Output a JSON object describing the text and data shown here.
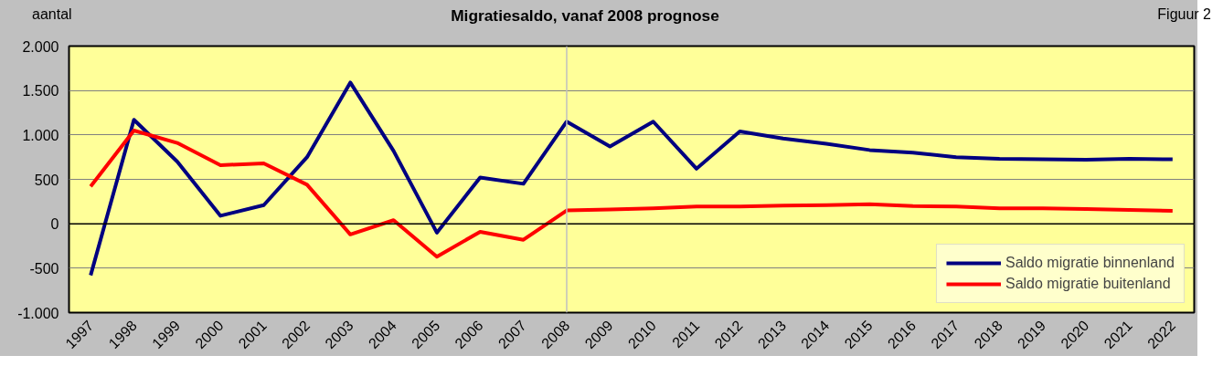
{
  "chart_data": {
    "type": "line",
    "title": "Migratiesaldo, vanaf 2008 prognose",
    "ylabel": "aantal",
    "annotations": [
      "Figuur 2"
    ],
    "categories": [
      "1997",
      "1998",
      "1999",
      "2000",
      "2001",
      "2002",
      "2003",
      "2004",
      "2005",
      "2006",
      "2007",
      "2008",
      "2009",
      "2010",
      "2011",
      "2012",
      "2013",
      "2014",
      "2015",
      "2016",
      "2017",
      "2018",
      "2019",
      "2020",
      "2021",
      "2022"
    ],
    "series": [
      {
        "name": "Saldo migratie binnenland",
        "color": "#000080",
        "values": [
          -580,
          1170,
          700,
          90,
          210,
          750,
          1590,
          820,
          -100,
          520,
          450,
          1150,
          870,
          1150,
          620,
          1040,
          960,
          900,
          830,
          800,
          750,
          730,
          725,
          720,
          730,
          725
        ]
      },
      {
        "name": "Saldo migratie buitenland",
        "color": "#ff0000",
        "values": [
          420,
          1050,
          910,
          660,
          680,
          440,
          -120,
          40,
          -370,
          -90,
          -180,
          150,
          160,
          175,
          195,
          195,
          205,
          210,
          220,
          200,
          195,
          175,
          175,
          165,
          155,
          145
        ]
      }
    ],
    "ylim": [
      -1000,
      2000
    ],
    "yticks": [
      {
        "value": -1000,
        "label": "-1.000"
      },
      {
        "value": -500,
        "label": "-500"
      },
      {
        "value": 0,
        "label": "0"
      },
      {
        "value": 500,
        "label": "500"
      },
      {
        "value": 1000,
        "label": "1.000"
      },
      {
        "value": 1500,
        "label": "1.500"
      },
      {
        "value": 2000,
        "label": "2.000"
      }
    ],
    "ref_lines": [
      {
        "axis": "x",
        "value": "2008",
        "color": "#c0c0c0"
      }
    ],
    "grid": "y",
    "legend": "bottom right",
    "line_style": "solid",
    "marker": "none"
  }
}
